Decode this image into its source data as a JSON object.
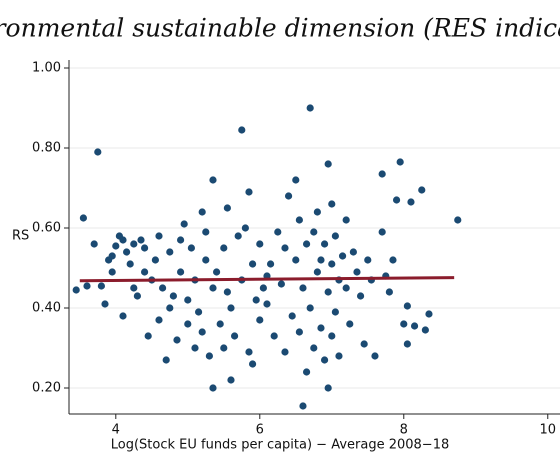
{
  "chart_data": {
    "type": "scatter",
    "title": "Environmental sustainable dimension (RES indicator)",
    "x_label": "Log(Stock EU funds per capita) − Average 2008−18",
    "y_label": "RS",
    "xlim": [
      3.35,
      10.17
    ],
    "ylim": [
      0.135,
      1.02
    ],
    "xticks": [
      4,
      6,
      8,
      10
    ],
    "yticks": [
      {
        "value": 0.2,
        "label": "0.20"
      },
      {
        "value": 0.4,
        "label": "0.40"
      },
      {
        "value": 0.6,
        "label": "0.60"
      },
      {
        "value": 0.8,
        "label": "0.80"
      },
      {
        "value": 1.0,
        "label": "1.00"
      }
    ],
    "grid": true,
    "series": [
      {
        "color": "#1b4a72",
        "x": [
          3.45,
          3.55,
          3.6,
          3.75,
          3.7,
          3.8,
          3.85,
          3.9,
          3.95,
          4.0,
          4.05,
          4.1,
          4.15,
          4.2,
          4.25,
          4.25,
          4.3,
          4.35,
          4.4,
          4.45,
          4.5,
          4.55,
          4.6,
          4.6,
          4.65,
          4.7,
          4.75,
          4.75,
          4.8,
          4.85,
          4.9,
          4.9,
          4.95,
          5.0,
          5.0,
          5.05,
          5.1,
          5.1,
          5.15,
          5.2,
          5.2,
          5.25,
          5.3,
          5.35,
          5.35,
          5.35,
          5.4,
          5.45,
          5.5,
          5.5,
          5.55,
          5.55,
          5.6,
          5.6,
          5.65,
          5.7,
          5.75,
          5.75,
          5.8,
          5.85,
          5.85,
          5.9,
          5.95,
          6.0,
          6.0,
          6.05,
          6.1,
          6.15,
          6.2,
          6.25,
          6.3,
          6.35,
          6.35,
          6.4,
          6.45,
          6.5,
          6.5,
          6.55,
          6.55,
          6.6,
          6.6,
          6.65,
          6.65,
          6.7,
          6.7,
          6.75,
          6.75,
          6.8,
          6.8,
          6.85,
          6.9,
          6.9,
          6.95,
          6.95,
          6.95,
          7.0,
          7.0,
          7.0,
          7.05,
          7.1,
          7.1,
          7.15,
          7.2,
          7.2,
          7.25,
          7.3,
          7.35,
          7.4,
          7.45,
          7.5,
          7.55,
          7.6,
          7.7,
          7.7,
          7.75,
          7.8,
          7.85,
          7.9,
          7.95,
          8.0,
          8.05,
          8.05,
          8.1,
          8.15,
          8.25,
          8.3,
          8.35,
          8.75,
          3.95,
          4.4,
          5.25,
          6.1,
          6.85,
          7.05,
          5.9,
          4.1
        ],
        "values": [
          0.445,
          0.625,
          0.455,
          0.79,
          0.56,
          0.455,
          0.41,
          0.52,
          0.53,
          0.555,
          0.58,
          0.57,
          0.54,
          0.51,
          0.56,
          0.45,
          0.43,
          0.57,
          0.55,
          0.33,
          0.47,
          0.52,
          0.58,
          0.37,
          0.45,
          0.27,
          0.4,
          0.54,
          0.43,
          0.32,
          0.49,
          0.57,
          0.61,
          0.36,
          0.42,
          0.55,
          0.3,
          0.47,
          0.39,
          0.64,
          0.34,
          0.52,
          0.28,
          0.72,
          0.45,
          0.2,
          0.49,
          0.36,
          0.3,
          0.55,
          0.65,
          0.44,
          0.22,
          0.4,
          0.33,
          0.58,
          0.845,
          0.47,
          0.6,
          0.29,
          0.69,
          0.51,
          0.42,
          0.56,
          0.37,
          0.45,
          0.41,
          0.51,
          0.33,
          0.59,
          0.46,
          0.55,
          0.29,
          0.68,
          0.38,
          0.72,
          0.52,
          0.62,
          0.34,
          0.155,
          0.45,
          0.24,
          0.56,
          0.9,
          0.4,
          0.59,
          0.3,
          0.49,
          0.64,
          0.35,
          0.56,
          0.27,
          0.76,
          0.2,
          0.44,
          0.66,
          0.51,
          0.33,
          0.58,
          0.47,
          0.28,
          0.53,
          0.62,
          0.45,
          0.36,
          0.54,
          0.49,
          0.43,
          0.31,
          0.52,
          0.47,
          0.28,
          0.735,
          0.59,
          0.48,
          0.44,
          0.52,
          0.67,
          0.765,
          0.36,
          0.31,
          0.405,
          0.665,
          0.355,
          0.695,
          0.345,
          0.385,
          0.62,
          0.49,
          0.49,
          0.59,
          0.48,
          0.52,
          0.39,
          0.26,
          0.38
        ]
      },
      {
        "type": "line",
        "color": "#8b1c2c",
        "x": [
          3.5,
          8.7
        ],
        "values": [
          0.468,
          0.476
        ]
      }
    ]
  }
}
